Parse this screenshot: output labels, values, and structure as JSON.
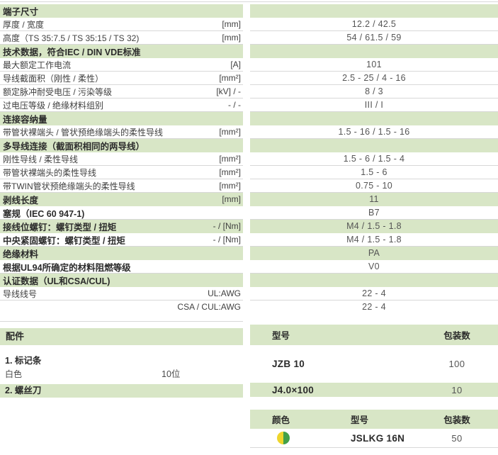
{
  "colors": {
    "row_green": "#d8e6c6",
    "line_gray": "#d8d8d8",
    "circle_yellow": "#eed52c",
    "circle_green": "#42a048"
  },
  "spec_table": {
    "rows": [
      {
        "label": "端子尺寸",
        "unit": "",
        "value": "",
        "green": true,
        "bold": true
      },
      {
        "label": "厚度 / 宽度",
        "unit": "[mm]",
        "value": "12.2 / 42.5",
        "green": false,
        "bold": false
      },
      {
        "label": "高度（TS 35:7.5 / TS 35:15 / TS 32)",
        "unit": "[mm]",
        "value": "54 / 61.5 / 59",
        "green": false,
        "bold": false
      },
      {
        "label": "技术数据，符合IEC / DIN VDE标准",
        "unit": "",
        "value": "",
        "green": true,
        "bold": true
      },
      {
        "label": "最大额定工作电流",
        "unit": "[A]",
        "value": "101",
        "green": false,
        "bold": false
      },
      {
        "label": "导线截面积（刚性 / 柔性）",
        "unit": "[mm²]",
        "value": "2.5 - 25 / 4 - 16",
        "green": false,
        "bold": false
      },
      {
        "label": "额定脉冲耐受电压 / 污染等级",
        "unit": "[kV] / -",
        "value": "8 / 3",
        "green": false,
        "bold": false
      },
      {
        "label": "过电压等级 / 绝缘材料组别",
        "unit": "- / -",
        "value": "III / I",
        "green": false,
        "bold": false
      },
      {
        "label": "连接容纳量",
        "unit": "",
        "value": "",
        "green": true,
        "bold": true
      },
      {
        "label": "带管状裸端头 / 管状预绝缘端头的柔性导线",
        "unit": "[mm²]",
        "value": "1.5 - 16 / 1.5 - 16",
        "green": false,
        "bold": false
      },
      {
        "label": "多导线连接（截面积相同的两导线）",
        "unit": "",
        "value": "",
        "green": true,
        "bold": true
      },
      {
        "label": "刚性导线 / 柔性导线",
        "unit": "[mm²]",
        "value": "1.5 - 6 / 1.5 - 4",
        "green": false,
        "bold": false
      },
      {
        "label": "带管状裸端头的柔性导线",
        "unit": "[mm²]",
        "value": "1.5 - 6",
        "green": false,
        "bold": false
      },
      {
        "label": "带TWIN管状预绝缘端头的柔性导线",
        "unit": "[mm²]",
        "value": "0.75 - 10",
        "green": false,
        "bold": false
      },
      {
        "label": "剥线长度",
        "unit": "[mm]",
        "value": "11",
        "green": true,
        "bold": true
      },
      {
        "label": "塞规（IEC 60 947-1)",
        "unit": "",
        "value": "B7",
        "green": false,
        "bold": true
      },
      {
        "label": "接线位螺钉：螺钉类型 / 扭矩",
        "unit": "- / [Nm]",
        "value": "M4 / 1.5 - 1.8",
        "green": true,
        "bold": true
      },
      {
        "label": "中央紧固螺钉：螺钉类型 / 扭矩",
        "unit": "- / [Nm]",
        "value": "M4 / 1.5 - 1.8",
        "green": false,
        "bold": true
      },
      {
        "label": "绝缘材料",
        "unit": "",
        "value": "PA",
        "green": true,
        "bold": true
      },
      {
        "label": "根据UL94所确定的材料阻燃等级",
        "unit": "",
        "value": "V0",
        "green": false,
        "bold": true
      },
      {
        "label": "认证数据（UL和CSA/CUL)",
        "unit": "",
        "value": "",
        "green": true,
        "bold": true
      },
      {
        "label": "导线线号",
        "unit": "UL:AWG",
        "value": "22 - 4",
        "green": false,
        "bold": false
      },
      {
        "label": "",
        "unit": "CSA / CUL:AWG",
        "value": "22 - 4",
        "green": false,
        "bold": false
      }
    ]
  },
  "accessories": {
    "title": "配件",
    "item1": {
      "title": "1. 标记条",
      "color": "白色",
      "qty": "10位"
    },
    "item2": {
      "title": "2. 螺丝刀"
    }
  },
  "acc_table1": {
    "col_model": "型号",
    "col_pack": "包装数",
    "rows": [
      {
        "model": "JZB 10",
        "pack": "100"
      },
      {
        "model": "J4.0×100",
        "pack": "10"
      }
    ]
  },
  "acc_table2": {
    "col_color": "颜色",
    "col_model": "型号",
    "col_pack": "包装数",
    "rows": [
      {
        "color_icon": "yellow-green-circle",
        "model": "JSLKG 16N",
        "pack": "50"
      }
    ]
  }
}
